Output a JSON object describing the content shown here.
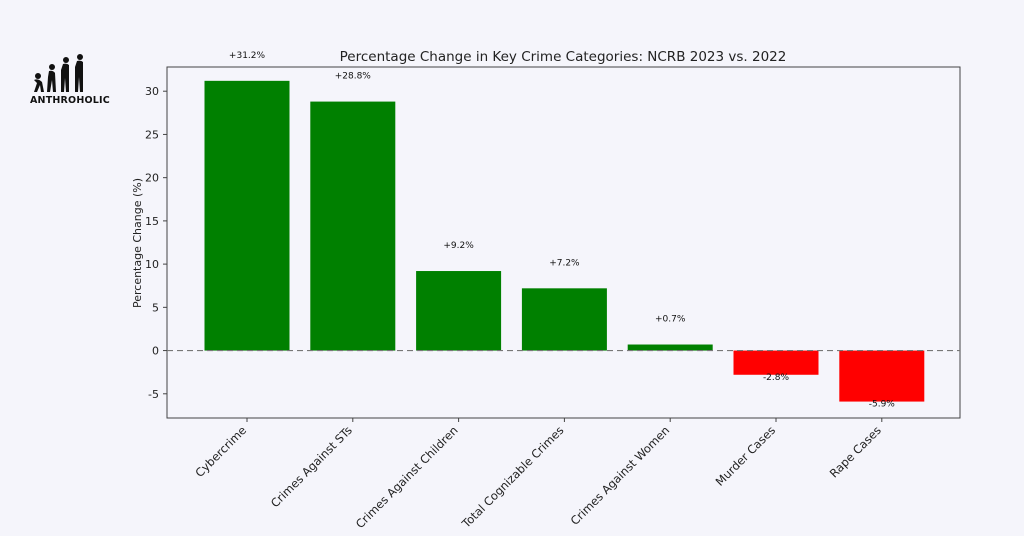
{
  "brand": {
    "name": "ANTHROHOLIC"
  },
  "chart_data": {
    "type": "bar",
    "title": "Percentage Change in Key Crime Categories: NCRB 2023 vs. 2022",
    "xlabel": "",
    "ylabel": "Percentage Change (%)",
    "categories": [
      "Cybercrime",
      "Crimes Against STs",
      "Crimes Against Children",
      "Total Cognizable Crimes",
      "Crimes Against Women",
      "Murder Cases",
      "Rape Cases"
    ],
    "values": [
      31.2,
      28.8,
      9.2,
      7.2,
      0.7,
      -2.8,
      -5.9
    ],
    "value_labels": [
      "+31.2%",
      "+28.8%",
      "+9.2%",
      "+7.2%",
      "+0.7%",
      "-2.8%",
      "-5.9%"
    ],
    "colors": {
      "positive": "#008000",
      "negative": "#ff0000",
      "zero_line": "#777777"
    },
    "yticks": [
      -5,
      0,
      5,
      10,
      15,
      20,
      25,
      30
    ],
    "ylim": [
      -7.8,
      32.8
    ],
    "grid": false,
    "zero_line": "dashed"
  }
}
